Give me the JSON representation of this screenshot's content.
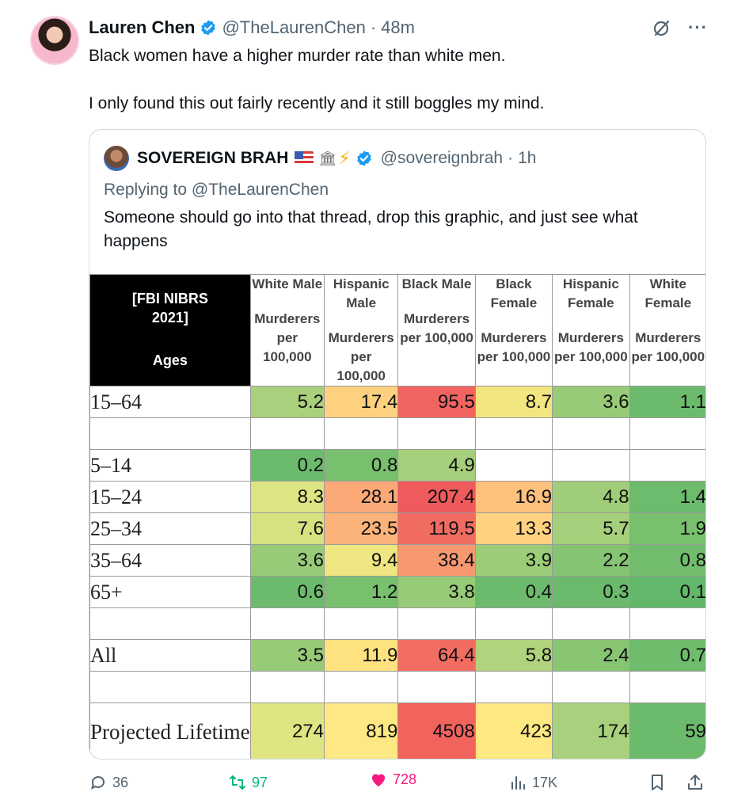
{
  "tweet": {
    "author_name": "Lauren Chen",
    "handle": "@TheLaurenChen",
    "separator": "·",
    "time": "48m",
    "text_line1": "Black women have a higher murder rate than white men.",
    "text_line2": "I only found this out fairly recently and it still boggles my mind.",
    "more": "···"
  },
  "quote": {
    "author_name": "SOVEREIGN BRAH",
    "handle": "@sovereignbrah",
    "separator": "·",
    "time": "1h",
    "replying_to": "Replying to @TheLaurenChen",
    "text": "Someone should go into that thread, drop this graphic, and just see what happens"
  },
  "table": {
    "corner_line1": "[FBI NIBRS",
    "corner_line2": "2021]",
    "corner_ages": "Ages",
    "columns": [
      {
        "group": "White Male",
        "unit": "Murderers per 100,000"
      },
      {
        "group": "Hispanic Male",
        "unit": "Murderers per 100,000"
      },
      {
        "group": "Black Male",
        "unit": "Murderers per 100,000"
      },
      {
        "group": "Black Female",
        "unit": "Murderers per 100,000"
      },
      {
        "group": "Hispanic Female",
        "unit": "Murderers per 100,000"
      },
      {
        "group": "White Female",
        "unit": "Murderers per 100,000"
      }
    ],
    "rows": [
      {
        "age": "15–64",
        "values": [
          "5.2",
          "17.4",
          "95.5",
          "8.7",
          "3.6",
          "1.1"
        ],
        "colors": [
          "#a9d07c",
          "#fdd17f",
          "#f2645f",
          "#f1e680",
          "#97cb78",
          "#6cbb6c"
        ]
      },
      {
        "age": "",
        "values": [
          "",
          "",
          "",
          "",
          "",
          ""
        ],
        "colors": [
          "#ffffff",
          "#ffffff",
          "#ffffff",
          "#ffffff",
          "#ffffff",
          "#ffffff"
        ]
      },
      {
        "age": "5–14",
        "values": [
          "0.2",
          "0.8",
          "4.9",
          "",
          "",
          ""
        ],
        "colors": [
          "#6cbb6c",
          "#78bf6e",
          "#a6cf7c",
          "#ffffff",
          "#ffffff",
          "#ffffff"
        ]
      },
      {
        "age": "15–24",
        "values": [
          "8.3",
          "28.1",
          "207.4",
          "16.9",
          "4.8",
          "1.4"
        ],
        "colors": [
          "#dde483",
          "#fba977",
          "#ef5a5c",
          "#fec07d",
          "#9fcd79",
          "#6dbb6c"
        ]
      },
      {
        "age": "25–34",
        "values": [
          "7.6",
          "23.5",
          "119.5",
          "13.3",
          "5.7",
          "1.9"
        ],
        "colors": [
          "#d6e282",
          "#fbb37a",
          "#f06c62",
          "#fed280",
          "#a6cf7b",
          "#78bf6e"
        ]
      },
      {
        "age": "35–64",
        "values": [
          "3.6",
          "9.4",
          "38.4",
          "3.9",
          "2.2",
          "0.8"
        ],
        "colors": [
          "#97cb78",
          "#eee680",
          "#f7986f",
          "#9bcc78",
          "#85c472",
          "#72bd6d"
        ]
      },
      {
        "age": "65+",
        "values": [
          "0.6",
          "1.2",
          "3.8",
          "0.4",
          "0.3",
          "0.1"
        ],
        "colors": [
          "#6cbb6c",
          "#78bf6e",
          "#97cb78",
          "#6cbb6c",
          "#6bba6b",
          "#63b76a"
        ]
      },
      {
        "age": "",
        "values": [
          "",
          "",
          "",
          "",
          "",
          ""
        ],
        "colors": [
          "#ffffff",
          "#ffffff",
          "#ffffff",
          "#ffffff",
          "#ffffff",
          "#ffffff"
        ]
      },
      {
        "age": "All",
        "values": [
          "3.5",
          "11.9",
          "64.4",
          "5.8",
          "2.4",
          "0.7"
        ],
        "colors": [
          "#97cb78",
          "#fde27f",
          "#f26c62",
          "#b1d37d",
          "#88c573",
          "#6ebc6c"
        ]
      },
      {
        "age": "",
        "values": [
          "",
          "",
          "",
          "",
          "",
          ""
        ],
        "colors": [
          "#ffffff",
          "#ffffff",
          "#ffffff",
          "#ffffff",
          "#ffffff",
          "#ffffff"
        ]
      },
      {
        "age": "Projected Lifetime",
        "values": [
          "274",
          "819",
          "4508",
          "423",
          "174",
          "59"
        ],
        "colors": [
          "#dfe583",
          "#fde883",
          "#f3635e",
          "#fee881",
          "#a9d07c",
          "#6cbb6c"
        ]
      }
    ]
  },
  "actions": {
    "replies": "36",
    "reposts": "97",
    "likes": "728",
    "views": "17K"
  },
  "colors": {
    "accent_blue": "#1d9bf0",
    "repost_green": "#00ba7c",
    "like_pink": "#f91880",
    "muted": "#536471"
  }
}
